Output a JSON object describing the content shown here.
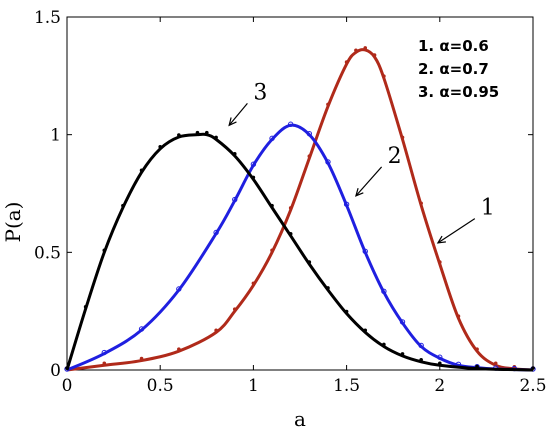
{
  "chart_data": {
    "type": "line",
    "xlabel": "a",
    "ylabel": "P(a)",
    "xlim": [
      0,
      2.5
    ],
    "ylim": [
      0,
      1.5
    ],
    "xticks": [
      "0",
      "0.5",
      "1",
      "1.5",
      "2",
      "2.5"
    ],
    "yticks": [
      "0",
      "0.5",
      "1",
      "1.5"
    ],
    "grid": false,
    "legend_position": "top-right",
    "legend": [
      "1. α=0.6",
      "2. α=0.7",
      "3. α=0.95"
    ],
    "series": [
      {
        "name": "1. α=0.6",
        "color": "#b02a1a",
        "marker": "dot",
        "x": [
          0,
          0.2,
          0.4,
          0.6,
          0.8,
          0.9,
          1.0,
          1.1,
          1.2,
          1.3,
          1.4,
          1.5,
          1.55,
          1.6,
          1.65,
          1.7,
          1.8,
          1.9,
          2.0,
          2.1,
          2.2,
          2.3,
          2.4,
          2.5
        ],
        "values": [
          0,
          0.02,
          0.04,
          0.08,
          0.16,
          0.25,
          0.36,
          0.5,
          0.68,
          0.9,
          1.12,
          1.3,
          1.35,
          1.36,
          1.33,
          1.24,
          0.98,
          0.7,
          0.45,
          0.22,
          0.08,
          0.02,
          0.005,
          0
        ]
      },
      {
        "name": "2. α=0.7",
        "color": "#1f1fe0",
        "marker": "circle",
        "x": [
          0,
          0.2,
          0.4,
          0.6,
          0.8,
          0.9,
          1.0,
          1.1,
          1.2,
          1.3,
          1.4,
          1.5,
          1.6,
          1.7,
          1.8,
          1.9,
          2.0,
          2.1,
          2.2,
          2.3,
          2.4,
          2.5
        ],
        "values": [
          0,
          0.07,
          0.17,
          0.34,
          0.58,
          0.72,
          0.87,
          0.98,
          1.04,
          1.0,
          0.88,
          0.7,
          0.5,
          0.33,
          0.2,
          0.1,
          0.05,
          0.02,
          0.01,
          0.004,
          0.002,
          0
        ]
      },
      {
        "name": "3. α=0.95",
        "color": "#000000",
        "marker": "dot",
        "x": [
          0,
          0.1,
          0.2,
          0.3,
          0.4,
          0.5,
          0.6,
          0.7,
          0.75,
          0.8,
          0.9,
          1.0,
          1.1,
          1.2,
          1.3,
          1.4,
          1.5,
          1.6,
          1.7,
          1.8,
          1.9,
          2.0,
          2.2,
          2.5
        ],
        "values": [
          0,
          0.26,
          0.5,
          0.69,
          0.84,
          0.94,
          0.99,
          1.0,
          1.0,
          0.98,
          0.91,
          0.81,
          0.69,
          0.57,
          0.45,
          0.34,
          0.24,
          0.16,
          0.1,
          0.06,
          0.035,
          0.02,
          0.006,
          0
        ]
      }
    ],
    "annotations": [
      {
        "text": "1",
        "x": 2.22,
        "y": 0.66,
        "arrow_to": [
          1.99,
          0.54
        ]
      },
      {
        "text": "2",
        "x": 1.72,
        "y": 0.88,
        "arrow_to": [
          1.55,
          0.74
        ]
      },
      {
        "text": "3",
        "x": 1.0,
        "y": 1.15,
        "arrow_to": [
          0.87,
          1.04
        ]
      }
    ]
  }
}
